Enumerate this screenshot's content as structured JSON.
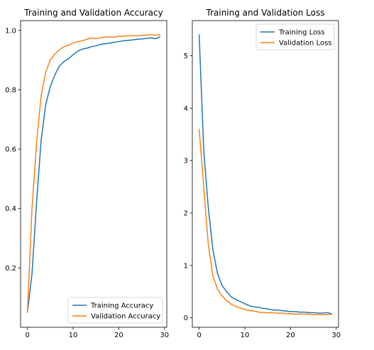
{
  "chart_data": [
    {
      "type": "line",
      "title": "Training and Validation Accuracy",
      "xlabel": "",
      "ylabel": "",
      "xlim": [
        -1.5,
        30.5
      ],
      "ylim": [
        0.0,
        1.033
      ],
      "xticks": [
        0,
        10,
        20,
        30
      ],
      "yticks": [
        0.2,
        0.4,
        0.6,
        0.8,
        1.0
      ],
      "xtick_labels": [
        "0",
        "10",
        "20",
        "30"
      ],
      "ytick_labels": [
        "0.2",
        "0.4",
        "0.6",
        "0.8",
        "1.0"
      ],
      "legend_loc": "lower right",
      "series": [
        {
          "name": "Training Accuracy",
          "color": "#1f77b4",
          "x": [
            0,
            1,
            2,
            3,
            4,
            5,
            6,
            7,
            8,
            9,
            10,
            11,
            12,
            13,
            14,
            15,
            16,
            17,
            18,
            19,
            20,
            21,
            22,
            23,
            24,
            25,
            26,
            27,
            28,
            29
          ],
          "y": [
            0.05,
            0.18,
            0.42,
            0.63,
            0.75,
            0.81,
            0.85,
            0.88,
            0.895,
            0.905,
            0.918,
            0.93,
            0.937,
            0.94,
            0.945,
            0.948,
            0.953,
            0.955,
            0.957,
            0.96,
            0.962,
            0.965,
            0.966,
            0.968,
            0.97,
            0.971,
            0.973,
            0.975,
            0.972,
            0.978
          ]
        },
        {
          "name": "Validation Accuracy",
          "color": "#ff7f0e",
          "x": [
            0,
            1,
            2,
            3,
            4,
            5,
            6,
            7,
            8,
            9,
            10,
            11,
            12,
            13,
            14,
            15,
            16,
            17,
            18,
            19,
            20,
            21,
            22,
            23,
            24,
            25,
            26,
            27,
            28,
            29
          ],
          "y": [
            0.05,
            0.4,
            0.62,
            0.78,
            0.86,
            0.9,
            0.92,
            0.935,
            0.945,
            0.95,
            0.958,
            0.962,
            0.965,
            0.97,
            0.975,
            0.972,
            0.975,
            0.978,
            0.978,
            0.977,
            0.98,
            0.98,
            0.982,
            0.982,
            0.982,
            0.983,
            0.984,
            0.985,
            0.984,
            0.985
          ]
        }
      ]
    },
    {
      "type": "line",
      "title": "Training and Validation Loss",
      "xlabel": "",
      "ylabel": "",
      "xlim": [
        -1.5,
        30.5
      ],
      "ylim": [
        -0.18,
        5.67
      ],
      "xticks": [
        0,
        10,
        20,
        30
      ],
      "yticks": [
        0,
        1,
        2,
        3,
        4,
        5
      ],
      "xtick_labels": [
        "0",
        "10",
        "20",
        "30"
      ],
      "ytick_labels": [
        "0",
        "1",
        "2",
        "3",
        "4",
        "5"
      ],
      "legend_loc": "upper right",
      "series": [
        {
          "name": "Training Loss",
          "color": "#1f77b4",
          "x": [
            0,
            1,
            2,
            3,
            4,
            5,
            6,
            7,
            8,
            9,
            10,
            11,
            12,
            13,
            14,
            15,
            16,
            17,
            18,
            19,
            20,
            21,
            22,
            23,
            24,
            25,
            26,
            27,
            28,
            29
          ],
          "y": [
            5.4,
            3.2,
            2.1,
            1.3,
            0.85,
            0.62,
            0.5,
            0.4,
            0.35,
            0.31,
            0.27,
            0.23,
            0.21,
            0.2,
            0.18,
            0.17,
            0.15,
            0.15,
            0.14,
            0.13,
            0.12,
            0.12,
            0.11,
            0.11,
            0.1,
            0.1,
            0.09,
            0.09,
            0.1,
            0.08
          ]
        },
        {
          "name": "Validation Loss",
          "color": "#ff7f0e",
          "x": [
            0,
            1,
            2,
            3,
            4,
            5,
            6,
            7,
            8,
            9,
            10,
            11,
            12,
            13,
            14,
            15,
            16,
            17,
            18,
            19,
            20,
            21,
            22,
            23,
            24,
            25,
            26,
            27,
            28,
            29
          ],
          "y": [
            3.6,
            2.5,
            1.4,
            0.8,
            0.55,
            0.42,
            0.33,
            0.26,
            0.22,
            0.19,
            0.16,
            0.14,
            0.13,
            0.11,
            0.1,
            0.1,
            0.1,
            0.09,
            0.09,
            0.08,
            0.08,
            0.07,
            0.07,
            0.07,
            0.07,
            0.06,
            0.06,
            0.06,
            0.06,
            0.07
          ]
        }
      ]
    }
  ]
}
